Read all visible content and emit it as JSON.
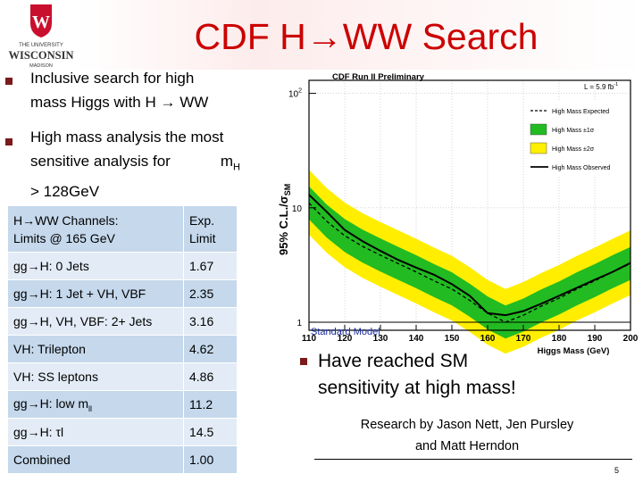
{
  "header": {
    "title": "CDF H→WW Search",
    "logo": {
      "icon": "uw-crest-logo",
      "text_line1": "THE UNIVERSITY",
      "text_line2": "WISCONSIN",
      "text_line3": "MADISON",
      "crest_letter": "W"
    }
  },
  "bullets": [
    {
      "lines": [
        "Inclusive search for high",
        "mass Higgs with H → WW"
      ]
    },
    {
      "lines": [
        "High mass analysis the most",
        "sensitive analysis for",
        "> 128GeV"
      ],
      "inline_label": "m",
      "inline_sub": "H"
    }
  ],
  "table": {
    "header_channel": [
      "H→WW Channels:",
      "Limits @ 165 GeV"
    ],
    "header_limit": [
      "Exp.",
      "Limit"
    ],
    "rows": [
      {
        "channel": "gg→H: 0 Jets",
        "limit": "1.67"
      },
      {
        "channel": "gg→H: 1 Jet + VH, VBF",
        "limit": "2.35"
      },
      {
        "channel": "gg→H, VH, VBF: 2+ Jets",
        "limit": "3.16"
      },
      {
        "channel": "VH: Trilepton",
        "limit": "4.62"
      },
      {
        "channel": "VH: SS leptons",
        "limit": "4.86"
      },
      {
        "channel": "gg→H: low m",
        "channel_sub": "ll",
        "limit": "11.2"
      },
      {
        "channel": "gg→H: τl",
        "limit": "14.5"
      },
      {
        "channel": "Combined",
        "limit": "1.00"
      }
    ]
  },
  "conclusion": [
    "Have reached SM",
    "sensitivity at high mass!"
  ],
  "credits": [
    "Research by Jason Nett, Jen Pursley",
    "and Matt Herndon"
  ],
  "page_number": "5",
  "chart_data": {
    "type": "line",
    "title": "CDF Run II Preliminary",
    "lumi_label": "L = 5.9 fb",
    "lumi_sup": "-1",
    "xlabel": "Higgs Mass (GeV)",
    "ylabel": "95% C.L./σ",
    "ylabel_sub": "SM",
    "log_y": true,
    "xlim": [
      110,
      200
    ],
    "ylim": [
      0.85,
      130
    ],
    "x_ticks": [
      "110",
      "120",
      "130",
      "140",
      "150",
      "160",
      "170",
      "180",
      "190",
      "200"
    ],
    "y_ticks": [
      {
        "value": 1,
        "label": "1"
      },
      {
        "value": 10,
        "label": "10"
      },
      {
        "value": 100,
        "label": "10",
        "sup": "2"
      }
    ],
    "reference_line": {
      "value": 1,
      "label": "Standard Model"
    },
    "legend": [
      "High Mass Expected",
      "High Mass ±1σ",
      "High Mass ±2σ",
      "High Mass Observed"
    ],
    "legend_placement": "top-right",
    "colors": {
      "expected": "#000000",
      "band1": "#22bb22",
      "band2": "#ffee00",
      "observed": "#000000",
      "sm_label": "#1a2aa0"
    },
    "x": [
      110,
      115,
      120,
      125,
      130,
      135,
      140,
      145,
      150,
      155,
      160,
      165,
      170,
      175,
      180,
      185,
      190,
      195,
      200
    ],
    "series": [
      {
        "name": "High Mass Expected",
        "style": "dashed",
        "values": [
          11,
          7.6,
          5.7,
          4.6,
          3.85,
          3.25,
          2.75,
          2.3,
          1.95,
          1.55,
          1.2,
          1.0,
          1.15,
          1.38,
          1.62,
          1.95,
          2.3,
          2.75,
          3.25
        ]
      },
      {
        "name": "High Mass Observed",
        "style": "solid",
        "values": [
          13,
          9.2,
          6.4,
          5.1,
          4.2,
          3.5,
          3.0,
          2.6,
          2.15,
          1.7,
          1.2,
          1.15,
          1.25,
          1.45,
          1.7,
          2.0,
          2.35,
          2.75,
          3.3
        ]
      }
    ],
    "band_1sigma": {
      "lower_factor": 0.72,
      "upper_factor": 1.4
    },
    "band_2sigma": {
      "lower_factor": 0.53,
      "upper_factor": 1.95
    }
  }
}
